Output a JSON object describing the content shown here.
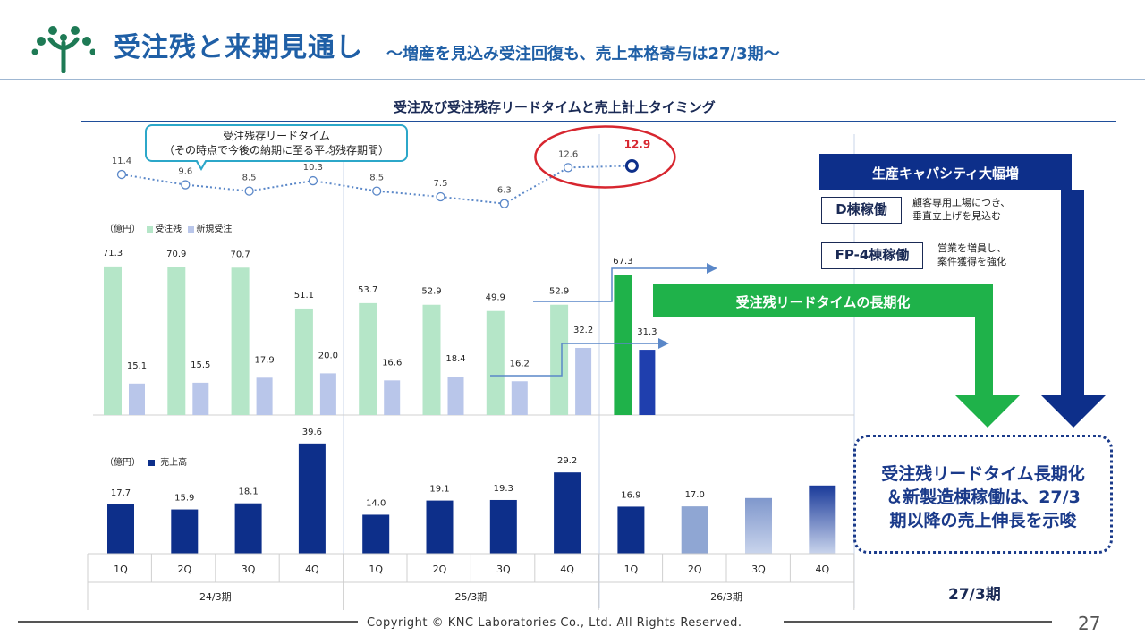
{
  "header": {
    "title": "受注残と来期見通し",
    "subtitle": "～増産を見込み受注回復も、売上本格寄与は27/3期～"
  },
  "colors": {
    "accent": "#1f5fa6",
    "logo_green": "#1e7a55",
    "order_backlog": "#b5e6c8",
    "order_backlog_latest": "#1fb24a",
    "new_orders": "#b9c6ea",
    "new_orders_latest": "#1f3fae",
    "sales": "#0d2f8a",
    "sales_forecast": "#8fa6d3",
    "ring_highlight": "#d7262f",
    "leadtime_line": "#5a87c8"
  },
  "chart_title": "受注及び受注残存リードタイムと売上計上タイミング",
  "callout": {
    "line1": "受注残存リードタイム",
    "line2": "（その時点で今後の納期に至る平均残存期間）"
  },
  "right_panel": {
    "capacity_label": "生産キャパシティ大幅増",
    "leadtime_label": "受注残リードタイムの長期化",
    "items": [
      {
        "box": "D棟稼働",
        "desc1": "顧客専用工場につき、",
        "desc2": "垂直立上げを見込む"
      },
      {
        "box": "FP-4棟稼働",
        "desc1": "営業を増員し、",
        "desc2": "案件獲得を強化"
      }
    ],
    "summary": [
      "受注残リードタイム長期化",
      "＆新製造棟稼働は、27/3",
      "期以降の売上伸長を示唆"
    ],
    "period_label": "27/3期"
  },
  "chart_data": [
    {
      "type": "line",
      "series": [
        {
          "name": "受注残存リードタイム",
          "values": [
            11.4,
            9.6,
            8.5,
            10.3,
            8.5,
            7.5,
            6.3,
            12.6,
            12.9
          ]
        }
      ],
      "categories": [
        "1Q",
        "2Q",
        "3Q",
        "4Q",
        "1Q",
        "2Q",
        "3Q",
        "4Q",
        "1Q"
      ],
      "value_labels": [
        "11.4",
        "9.6",
        "8.5",
        "10.3",
        "8.5",
        "7.5",
        "6.3",
        "12.6",
        "12.9"
      ],
      "highlight_last": true
    },
    {
      "type": "bar",
      "unit_label": "（億円）",
      "categories": [
        "1Q",
        "2Q",
        "3Q",
        "4Q",
        "1Q",
        "2Q",
        "3Q",
        "4Q",
        "1Q"
      ],
      "series": [
        {
          "name": "受注残",
          "values": [
            71.3,
            70.9,
            70.7,
            51.1,
            53.7,
            52.9,
            49.9,
            52.9,
            67.3
          ],
          "labels": [
            "71.3",
            "70.9",
            "70.7",
            "51.1",
            "53.7",
            "52.9",
            "49.9",
            "52.9",
            "67.3"
          ]
        },
        {
          "name": "新規受注",
          "values": [
            15.1,
            15.5,
            17.9,
            20.0,
            16.6,
            18.4,
            16.2,
            32.2,
            31.3
          ],
          "labels": [
            "15.1",
            "15.5",
            "17.9",
            "20.0",
            "16.6",
            "18.4",
            "16.2",
            "32.2",
            "31.3"
          ]
        }
      ]
    },
    {
      "type": "bar",
      "unit_label": "（億円）",
      "categories": [
        "1Q",
        "2Q",
        "3Q",
        "4Q",
        "1Q",
        "2Q",
        "3Q",
        "4Q",
        "1Q",
        "2Q",
        "3Q",
        "4Q"
      ],
      "periods": [
        "24/3期",
        "25/3期",
        "26/3期"
      ],
      "series": [
        {
          "name": "売上高",
          "values": [
            17.7,
            15.9,
            18.1,
            39.6,
            14.0,
            19.1,
            19.3,
            29.2,
            16.9,
            17.0,
            20.0,
            24.5
          ],
          "labels": [
            "17.7",
            "15.9",
            "18.1",
            "39.6",
            "14.0",
            "19.1",
            "19.3",
            "29.2",
            "16.9",
            "17.0",
            "",
            ""
          ]
        }
      ]
    }
  ],
  "footer": {
    "copyright": "Copyright © KNC Laboratories Co., Ltd. All Rights Reserved.",
    "page_number": "27"
  }
}
